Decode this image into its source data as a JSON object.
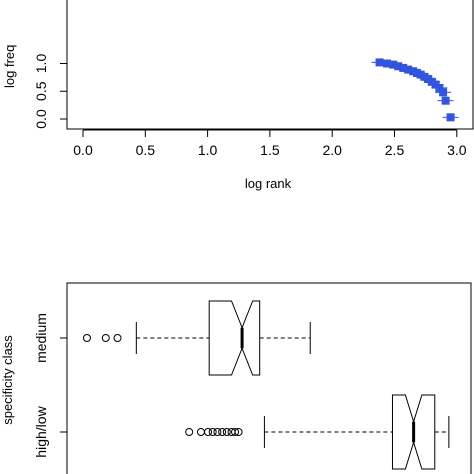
{
  "chart_data": [
    {
      "type": "scatter",
      "xlabel": "log rank",
      "ylabel": "log freq",
      "xlim": [
        0,
        3
      ],
      "ylim": [
        0,
        1.1
      ],
      "xticks": [
        "0.0",
        "0.5",
        "1.0",
        "1.5",
        "2.0",
        "2.5",
        "3.0"
      ],
      "yticks": [
        "0.0",
        "0.5",
        "1.0"
      ],
      "marker_color": "#3355dd",
      "points": [
        [
          2.38,
          1.02
        ],
        [
          2.44,
          1.0
        ],
        [
          2.49,
          0.98
        ],
        [
          2.53,
          0.95
        ],
        [
          2.57,
          0.92
        ],
        [
          2.61,
          0.89
        ],
        [
          2.65,
          0.86
        ],
        [
          2.68,
          0.83
        ],
        [
          2.71,
          0.8
        ],
        [
          2.74,
          0.76
        ],
        [
          2.77,
          0.72
        ],
        [
          2.8,
          0.67
        ],
        [
          2.83,
          0.62
        ],
        [
          2.86,
          0.56
        ],
        [
          2.89,
          0.48
        ],
        [
          2.91,
          0.33
        ],
        [
          2.95,
          0.03
        ]
      ]
    },
    {
      "type": "boxplot",
      "ylabel": "specificity class",
      "categories": [
        "medium",
        "high/low"
      ],
      "boxes": [
        {
          "name": "medium",
          "whisker_low": 0.295,
          "q1": 0.605,
          "median": 0.745,
          "q3": 0.82,
          "whisker_high": 1.035,
          "notch_low": 0.7,
          "notch_high": 0.79,
          "outliers": [
            0.085,
            0.165,
            0.215
          ]
        },
        {
          "name": "high/low",
          "whisker_low": 0.84,
          "q1": 1.385,
          "median": 1.475,
          "q3": 1.565,
          "whisker_high": 1.625,
          "notch_low": 1.44,
          "notch_high": 1.51,
          "outliers": [
            0.52,
            0.57,
            0.6,
            0.62,
            0.64,
            0.66,
            0.68,
            0.7,
            0.715,
            0.73
          ]
        }
      ]
    }
  ]
}
